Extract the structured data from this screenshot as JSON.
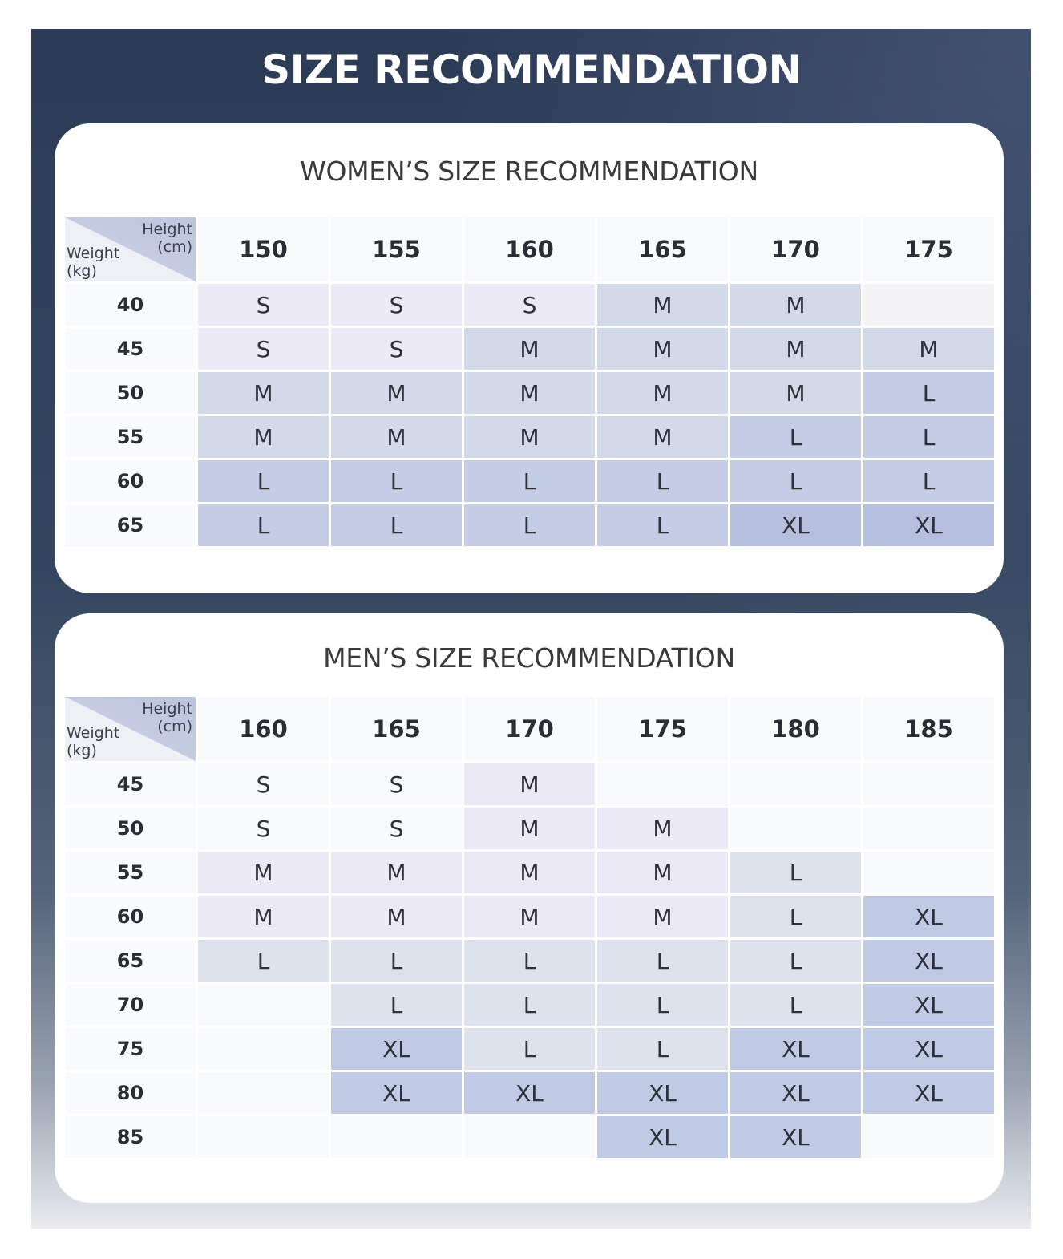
{
  "title": "SIZE RECOMMENDATION",
  "colors": {
    "S": "#ebeaf6",
    "M": "#d3dae8",
    "L": "#c2cce4",
    "XL": "#b4bfdd",
    "empty": "#f6f7f9"
  },
  "women": {
    "title": "WOMEN’S SIZE RECOMMENDATION",
    "height_label": [
      "Height",
      "(cm)"
    ],
    "weight_label": [
      "Weight",
      "(kg)"
    ],
    "heights": [
      "150",
      "155",
      "160",
      "165",
      "170",
      "175"
    ],
    "rows": [
      {
        "weight": "40",
        "sizes": [
          "S",
          "S",
          "S",
          "M",
          "M",
          ""
        ]
      },
      {
        "weight": "45",
        "sizes": [
          "S",
          "S",
          "M",
          "M",
          "M",
          "M"
        ]
      },
      {
        "weight": "50",
        "sizes": [
          "M",
          "M",
          "M",
          "M",
          "M",
          "L"
        ]
      },
      {
        "weight": "55",
        "sizes": [
          "M",
          "M",
          "M",
          "M",
          "L",
          "L"
        ]
      },
      {
        "weight": "60",
        "sizes": [
          "L",
          "L",
          "L",
          "L",
          "L",
          "L"
        ]
      },
      {
        "weight": "65",
        "sizes": [
          "L",
          "L",
          "L",
          "L",
          "XL",
          "XL"
        ]
      }
    ],
    "palette": {
      "S": "#ebeaf6",
      "M": "#d2d9e8",
      "L": "#c4cde5",
      "XL": "#b6c0de",
      "": "#f4f4f6"
    }
  },
  "men": {
    "title": "MEN’S SIZE RECOMMENDATION",
    "height_label": [
      "Height",
      "(cm)"
    ],
    "weight_label": [
      "Weight",
      "(kg)"
    ],
    "heights": [
      "160",
      "165",
      "170",
      "175",
      "180",
      "185"
    ],
    "rows": [
      {
        "weight": "45",
        "sizes": [
          "S",
          "S",
          "M",
          "",
          "",
          ""
        ]
      },
      {
        "weight": "50",
        "sizes": [
          "S",
          "S",
          "M",
          "M",
          "",
          ""
        ]
      },
      {
        "weight": "55",
        "sizes": [
          "M",
          "M",
          "M",
          "M",
          "L",
          ""
        ]
      },
      {
        "weight": "60",
        "sizes": [
          "M",
          "M",
          "M",
          "M",
          "L",
          "XL"
        ]
      },
      {
        "weight": "65",
        "sizes": [
          "L",
          "L",
          "L",
          "L",
          "L",
          "XL"
        ]
      },
      {
        "weight": "70",
        "sizes": [
          "",
          "L",
          "L",
          "L",
          "L",
          "XL"
        ]
      },
      {
        "weight": "75",
        "sizes": [
          "",
          "XL",
          "L",
          "L",
          "XL",
          "XL"
        ]
      },
      {
        "weight": "80",
        "sizes": [
          "",
          "XL",
          "XL",
          "XL",
          "XL",
          "XL"
        ]
      },
      {
        "weight": "85",
        "sizes": [
          "",
          "",
          "",
          "XL",
          "XL",
          ""
        ]
      }
    ],
    "palette": {
      "S": "#f8f9fb",
      "M": "#ebe9f6",
      "L": "#dde2ec",
      "XL": "#c0cae4",
      "": "#f8f9fb"
    }
  }
}
